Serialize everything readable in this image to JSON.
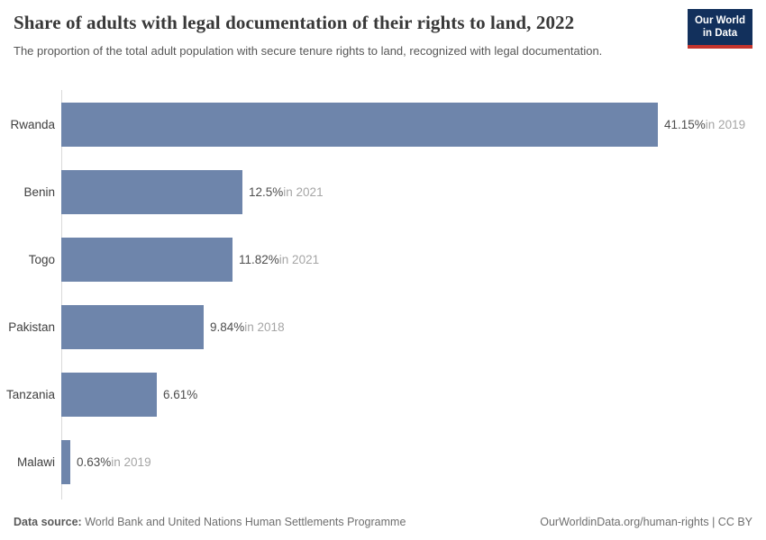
{
  "header": {
    "title": "Share of adults with legal documentation of their rights to land, 2022",
    "subtitle": "The proportion of the total adult population with secure tenure rights to land, recognized with legal documentation.",
    "logo_line1": "Our World",
    "logo_line2": "in Data",
    "logo_bg_color": "#12305c",
    "logo_accent_color": "#c4342d"
  },
  "chart_data": {
    "type": "bar",
    "orientation": "horizontal",
    "title": "Share of adults with legal documentation of their rights to land, 2022",
    "categories": [
      "Rwanda",
      "Benin",
      "Togo",
      "Pakistan",
      "Tanzania",
      "Malawi"
    ],
    "values": [
      41.15,
      12.5,
      11.82,
      9.84,
      6.61,
      0.63
    ],
    "value_labels": [
      "41.15%",
      "12.5%",
      "11.82%",
      "9.84%",
      "6.61%",
      "0.63%"
    ],
    "year_labels": [
      "in 2019",
      "in 2021",
      "in 2021",
      "in 2018",
      "",
      "in 2019"
    ],
    "xlabel": "",
    "ylabel": "",
    "xlim": [
      0,
      41.15
    ],
    "grid": false,
    "legend": false,
    "bar_color": "#6e85ab",
    "axis_color": "#dadada"
  },
  "footer": {
    "datasource_label": "Data source:",
    "datasource_value": " World Bank and United Nations Human Settlements Programme",
    "link": "OurWorldinData.org/human-rights",
    "separator": " | ",
    "license": "CC BY"
  }
}
